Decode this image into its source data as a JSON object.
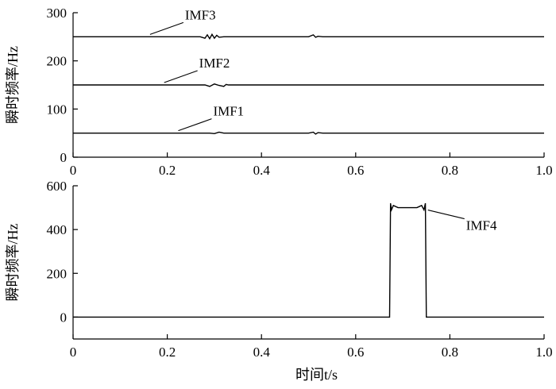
{
  "chart_data": [
    {
      "type": "line",
      "xlim": [
        0,
        1
      ],
      "ylim": [
        0,
        300
      ],
      "xticks": [
        "0",
        "0.2",
        "0.4",
        "0.6",
        "0.8",
        "1.0"
      ],
      "yticks": [
        "0",
        "100",
        "200",
        "300"
      ],
      "ylabel": "瞬时频率/Hz",
      "xlabel": "",
      "grid": false,
      "series": [
        {
          "name": "IMF3",
          "x": [
            0,
            0.27,
            0.28,
            0.285,
            0.29,
            0.295,
            0.3,
            0.305,
            0.31,
            0.32,
            0.5,
            0.51,
            0.515,
            0.52,
            0.53,
            1.0
          ],
          "y": [
            250,
            250,
            247,
            254,
            246,
            255,
            247,
            253,
            249,
            250,
            250,
            254,
            249,
            251,
            250,
            250
          ]
        },
        {
          "name": "IMF2",
          "x": [
            0,
            0.28,
            0.29,
            0.3,
            0.31,
            0.32,
            0.325,
            0.33,
            1.0
          ],
          "y": [
            150,
            150,
            147,
            152,
            149,
            147,
            151,
            150,
            150
          ]
        },
        {
          "name": "IMF1",
          "x": [
            0,
            0.29,
            0.3,
            0.31,
            0.32,
            0.5,
            0.51,
            0.515,
            0.52,
            0.53,
            1.0
          ],
          "y": [
            50,
            50,
            49,
            52,
            50,
            50,
            52,
            48,
            51,
            50,
            50
          ]
        }
      ],
      "annotations": [
        {
          "text": "IMF3",
          "x": 0.16,
          "y": 250
        },
        {
          "text": "IMF2",
          "x": 0.19,
          "y": 150
        },
        {
          "text": "IMF1",
          "x": 0.22,
          "y": 50
        }
      ]
    },
    {
      "type": "line",
      "xlim": [
        0,
        1
      ],
      "ylim": [
        -100,
        600
      ],
      "xticks": [
        "0",
        "0.2",
        "0.4",
        "0.6",
        "0.8",
        "1.0"
      ],
      "yticks": [
        "0",
        "200",
        "400",
        "600"
      ],
      "ylabel": "瞬时频率/Hz",
      "xlabel": "时间t/s",
      "grid": false,
      "series": [
        {
          "name": "IMF4",
          "x": [
            0,
            0.672,
            0.674,
            0.676,
            0.68,
            0.69,
            0.7,
            0.71,
            0.72,
            0.73,
            0.74,
            0.745,
            0.748,
            0.75,
            1.0
          ],
          "y": [
            0,
            0,
            520,
            490,
            510,
            500,
            500,
            500,
            500,
            500,
            510,
            490,
            520,
            0,
            0
          ]
        }
      ],
      "annotations": [
        {
          "text": "IMF4",
          "x": 0.75,
          "y": 500
        }
      ]
    }
  ]
}
